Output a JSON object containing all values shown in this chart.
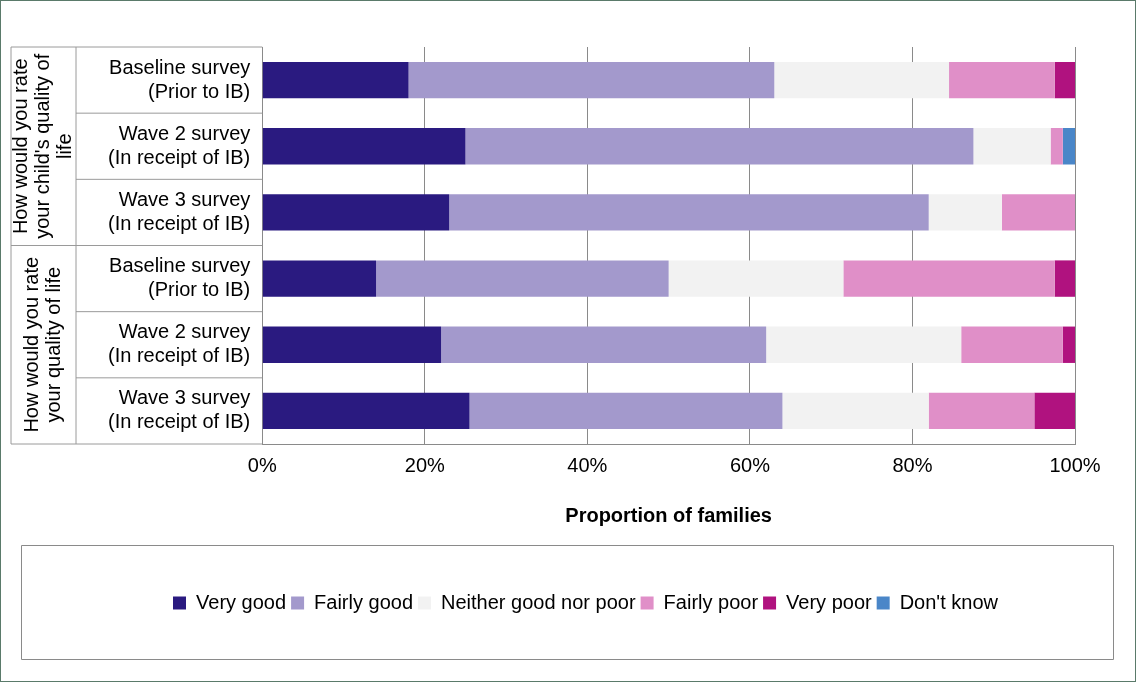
{
  "chart_data": {
    "type": "bar",
    "orientation": "horizontal",
    "stacked": true,
    "xlabel": "Proportion of families",
    "categories": [
      "Baseline survey\n(Prior to IB)",
      "Wave 2 survey\n(In receipt of IB)",
      "Wave 3 survey\n(In receipt of IB)",
      "Baseline survey\n(Prior to IB)",
      "Wave 2 survey\n(In receipt of IB)",
      "Wave 3 survey\n(In receipt of IB)"
    ],
    "annotations": [
      "How would you rate your child's quality of life",
      "How would you rate your quality of life"
    ],
    "series": [
      {
        "name": "Very good",
        "color": "#2a1a80",
        "values": [
          18,
          25,
          23,
          14,
          22,
          25.5
        ]
      },
      {
        "name": "Fairly good",
        "color": "#a399cc",
        "values": [
          45,
          62.5,
          59,
          36,
          40,
          38.5
        ]
      },
      {
        "name": "Neither good nor poor",
        "color": "#f2f2f2",
        "values": [
          21.5,
          9.5,
          9,
          21.5,
          24,
          18
        ]
      },
      {
        "name": "Fairly poor",
        "color": "#e08fc8",
        "values": [
          13,
          1.5,
          9,
          26,
          12.5,
          13
        ]
      },
      {
        "name": "Very poor",
        "color": "#b0127f",
        "values": [
          2.5,
          0,
          0,
          2.5,
          1.5,
          5
        ]
      },
      {
        "name": "Don't know",
        "color": "#4a86c8",
        "values": [
          0,
          1.5,
          0,
          0,
          0,
          0
        ]
      }
    ],
    "xlim": [
      0,
      100
    ],
    "xticks": [
      {
        "value": 0,
        "label": "0%"
      },
      {
        "value": 20,
        "label": "20%"
      },
      {
        "value": 40,
        "label": "40%"
      },
      {
        "value": 60,
        "label": "60%"
      },
      {
        "value": 80,
        "label": "80%"
      },
      {
        "value": 100,
        "label": "100%"
      }
    ],
    "grid": "x",
    "legend": "bottom"
  }
}
